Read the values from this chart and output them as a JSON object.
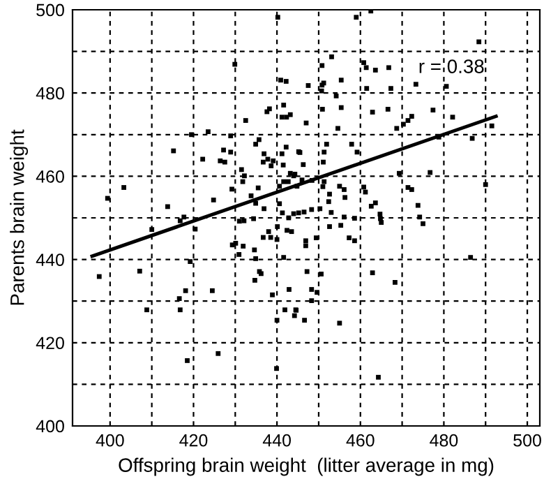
{
  "chart_data": {
    "type": "scatter",
    "xlabel": "Offspring brain weight  (litter average in mg)",
    "ylabel": "Parents brain weight",
    "annotations": [
      "r = 0.38"
    ],
    "xlim": [
      391,
      503
    ],
    "ylim": [
      400,
      500
    ],
    "xticks": [
      400,
      {
        "value": 410,
        "label": null
      },
      420,
      {
        "value": 430,
        "label": null
      },
      440,
      {
        "value": 450,
        "label": null
      },
      460,
      {
        "value": 470,
        "label": null
      },
      480,
      {
        "value": 490,
        "label": null
      },
      500
    ],
    "yticks": [
      400,
      {
        "value": 410,
        "label": null
      },
      420,
      {
        "value": 430,
        "label": null
      },
      440,
      {
        "value": 450,
        "label": null
      },
      460,
      {
        "value": 470,
        "label": null
      },
      480,
      {
        "value": 490,
        "label": null
      },
      500
    ],
    "grid": true,
    "legend": false,
    "series": [
      {
        "color": "#000000",
        "marker": "square",
        "x": [
          440.2,
          429.9,
          440.9,
          442.2,
          438.2,
          437.6,
          441.6,
          441.2,
          442.3,
          443.2,
          432.5,
          419.5,
          423.5,
          428.9,
          435.7,
          434.9,
          442.2,
          415.2,
          427.2,
          428.9,
          436.9,
          441.2,
          445.2,
          422.2,
          426.4,
          427.5,
          437.8,
          439.1,
          438.6,
          436.7,
          441.5,
          431.5,
          432.2,
          431.8,
          443.2,
          444.0,
          441.6,
          442.7,
          403.3,
          399.4,
          429.2,
          433.8,
          435.5,
          440.6,
          424.8,
          434.9,
          436.9,
          440.6,
          413.8,
          441.3,
          444.0,
          442.8,
          416.8,
          417.7,
          431.0,
          432.1,
          434.4,
          459.0,
          462.5,
          488.4,
          453.1,
          450.8,
          460.8,
          461.4,
          463.6,
          466.8,
          447.5,
          450.8,
          451.2,
          455.4,
          450.7,
          454.2,
          461.5,
          467.3,
          473.3,
          480.6,
          450.9,
          455.4,
          462.9,
          466.6,
          472.3,
          471.4,
          470.3,
          468.7,
          477.4,
          482.1,
          447.0,
          454.6,
          491.5,
          486.8,
          478.8,
          451.9,
          457.9,
          451.3,
          459.2,
          445.5,
          446.3,
          451.1,
          469.3,
          476.7,
          444.3,
          446.0,
          444.8,
          448.4,
          451.3,
          451.0,
          455.0,
          456.1,
          460.8,
          461.2,
          471.4,
          472.3,
          490.0,
          452.6,
          452.4,
          456.3,
          463.6,
          462.6,
          473.8,
          445.2,
          446.5,
          448.3,
          450.3,
          453.0,
          456.1,
          464.7,
          464.8,
          474.2,
          420.4,
          410.0,
          429.3,
          430.1,
          431.9,
          430.9,
          434.6,
          434.9,
          438.0,
          436.7,
          438.5,
          440.1,
          442.4,
          443.5,
          440.0,
          441.6,
          397.4,
          407.1,
          419.2,
          435.8,
          436.2,
          434.7,
          418.1,
          424.5,
          416.6,
          438.9,
          442.9,
          408.8,
          416.8,
          441.9,
          444.5,
          444.2,
          440.0,
          418.5,
          425.9,
          439.9,
          452.6,
          455.3,
          458.6,
          465.0,
          475.0,
          446.9,
          446.9,
          449.4,
          457.3,
          458.6,
          486.4,
          447.2,
          450.6,
          462.9,
          468.3,
          448.3,
          449.6,
          448.3,
          444.6,
          446.6,
          455.0,
          464.3
        ],
        "values": [
          498.2,
          486.9,
          483.1,
          482.8,
          476.2,
          475.5,
          477.1,
          474.2,
          474.2,
          474.8,
          473.4,
          470.0,
          470.7,
          469.7,
          468.8,
          467.7,
          467.0,
          466.1,
          466.3,
          465.8,
          465.4,
          465.4,
          465.9,
          464.1,
          463.7,
          463.4,
          464.1,
          463.7,
          462.5,
          463.4,
          462.7,
          461.6,
          460.1,
          458.7,
          460.7,
          460.1,
          458.7,
          458.7,
          457.3,
          454.7,
          456.9,
          455.3,
          457.2,
          457.6,
          454.3,
          453.5,
          452.2,
          453.4,
          452.7,
          451.2,
          451.0,
          450.0,
          449.3,
          450.2,
          449.2,
          449.3,
          449.8,
          498.2,
          499.7,
          492.3,
          488.7,
          486.6,
          487.3,
          486.1,
          485.5,
          486.1,
          481.8,
          481.9,
          482.4,
          483.1,
          480.5,
          479.3,
          481.1,
          481.1,
          482.1,
          481.6,
          476.1,
          476.5,
          475.4,
          476.1,
          474.4,
          473.4,
          472.5,
          471.5,
          475.9,
          474.2,
          472.8,
          471.5,
          472.1,
          469.1,
          469.4,
          467.7,
          467.7,
          465.8,
          465.8,
          465.7,
          462.8,
          463.4,
          460.7,
          460.9,
          460.5,
          459.1,
          457.6,
          459.0,
          458.7,
          457.5,
          457.6,
          456.8,
          457.4,
          456.2,
          457.3,
          456.8,
          458.0,
          455.7,
          453.9,
          454.9,
          453.6,
          452.8,
          453.0,
          451.2,
          451.4,
          452.0,
          452.2,
          451.3,
          450.2,
          450.9,
          449.8,
          450.2,
          447.3,
          447.2,
          443.5,
          443.9,
          443.2,
          441.2,
          442.3,
          440.2,
          446.7,
          445.3,
          445.3,
          447.9,
          447.0,
          446.7,
          444.8,
          440.5,
          435.9,
          437.2,
          439.5,
          437.1,
          436.6,
          435.0,
          432.5,
          432.5,
          430.6,
          431.5,
          432.8,
          427.9,
          427.9,
          427.9,
          427.9,
          426.5,
          425.4,
          415.7,
          417.4,
          413.8,
          447.9,
          448.2,
          449.9,
          448.9,
          448.6,
          444.5,
          443.3,
          445.2,
          445.2,
          444.5,
          440.5,
          437.1,
          436.5,
          436.8,
          434.5,
          432.8,
          432.1,
          430.1,
          427.8,
          425.4,
          424.7,
          411.7
        ]
      },
      {
        "type": "line",
        "color": "#000000",
        "x": [
          395.7,
          492.5
        ],
        "values": [
          440.8,
          474.4
        ]
      }
    ]
  }
}
